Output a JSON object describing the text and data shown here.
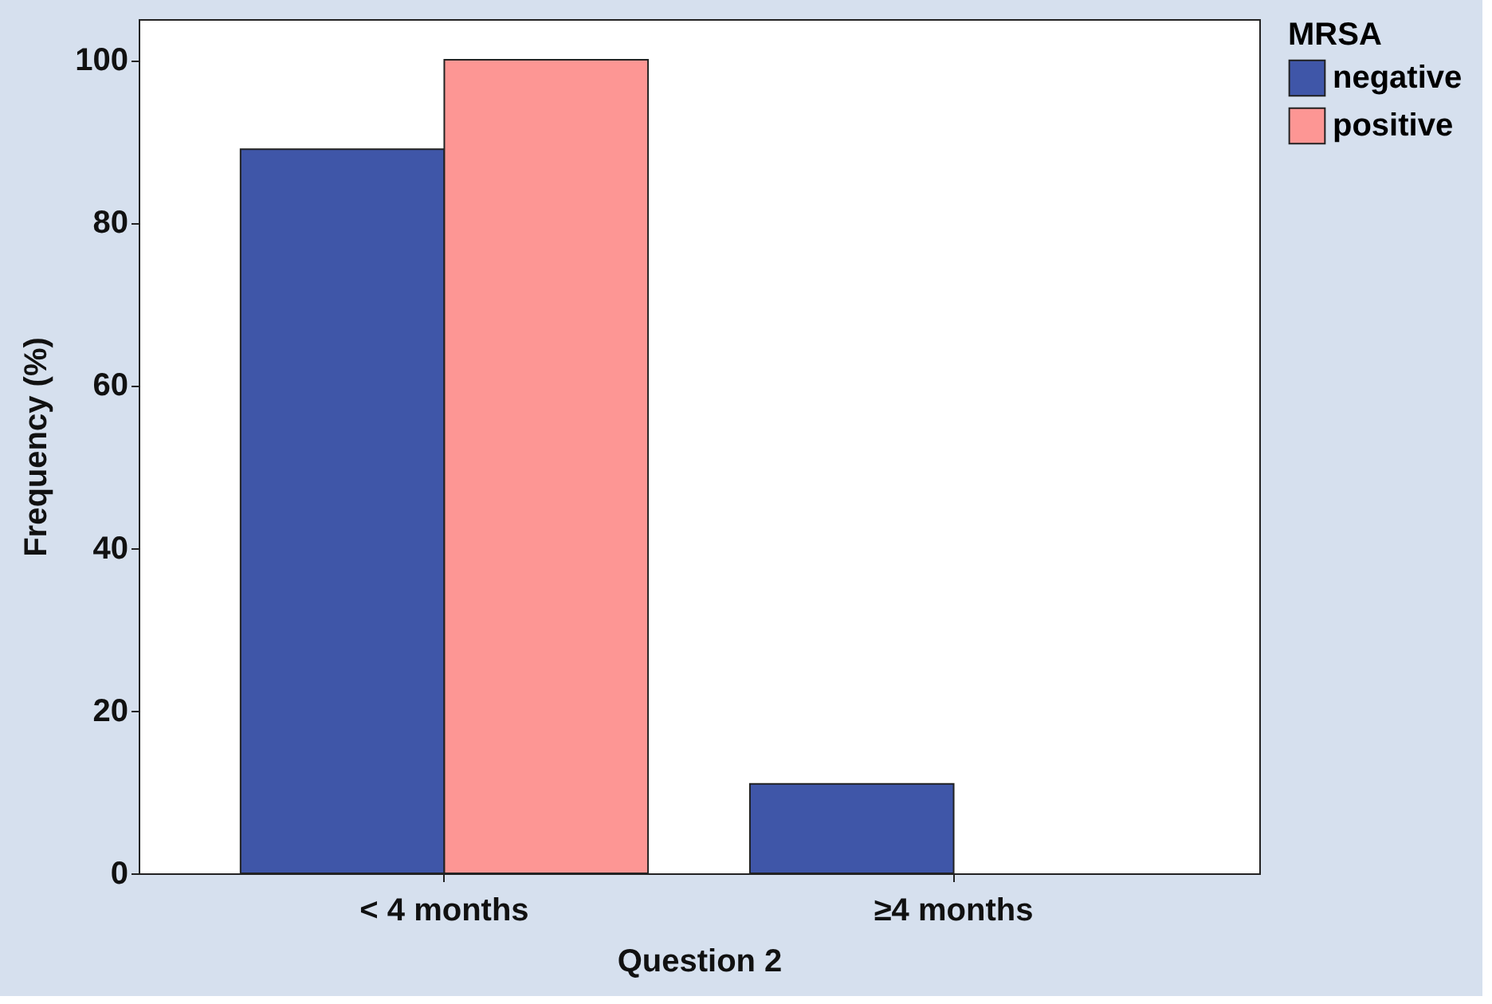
{
  "chart_data": {
    "type": "bar",
    "xlabel": "Question 2",
    "ylabel": "Frequency (%)",
    "legend_title": "MRSA",
    "categories": [
      "< 4 months",
      "≥4 months"
    ],
    "series": [
      {
        "name": "negative",
        "color": "#3f56a8",
        "values": [
          89,
          11
        ]
      },
      {
        "name": "positive",
        "color": "#fd9694",
        "values": [
          100,
          null
        ]
      }
    ],
    "ylim": [
      0,
      105
    ],
    "yticks": [
      0,
      20,
      40,
      60,
      80,
      100
    ],
    "grid": false,
    "legend": "right"
  }
}
